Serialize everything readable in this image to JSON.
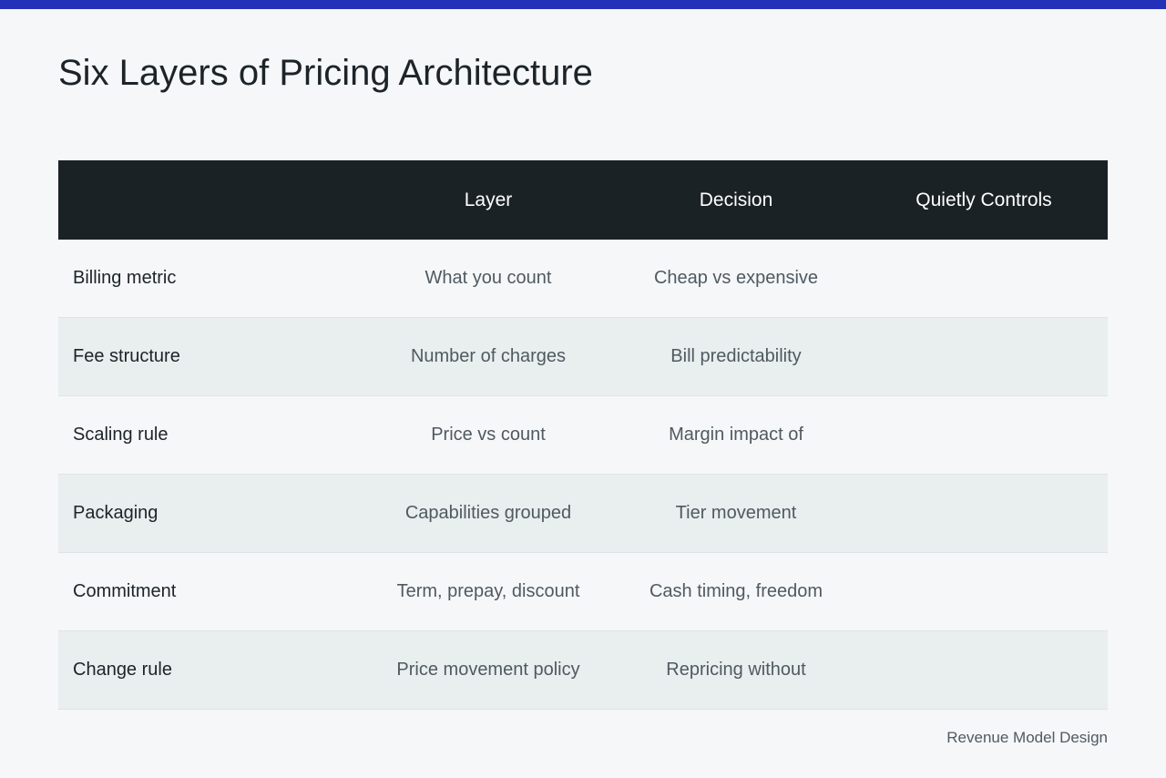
{
  "title": "Six Layers of Pricing Architecture",
  "table": {
    "headers": [
      "",
      "Layer",
      "Decision",
      "Quietly Controls"
    ],
    "rows": [
      {
        "label": "Billing metric",
        "layer": "What you count",
        "decision": "Cheap vs expensive",
        "controls": ""
      },
      {
        "label": "Fee structure",
        "layer": "Number of charges",
        "decision": "Bill predictability",
        "controls": ""
      },
      {
        "label": "Scaling rule",
        "layer": "Price vs count",
        "decision": "Margin impact of",
        "controls": ""
      },
      {
        "label": "Packaging",
        "layer": "Capabilities grouped",
        "decision": "Tier movement",
        "controls": ""
      },
      {
        "label": "Commitment",
        "layer": "Term, prepay, discount",
        "decision": "Cash timing, freedom",
        "controls": ""
      },
      {
        "label": "Change rule",
        "layer": "Price movement policy",
        "decision": "Repricing without",
        "controls": ""
      }
    ]
  },
  "footer": "Revenue Model Design",
  "colors": {
    "accent_bar": "#2430b8",
    "header_bg": "#1b2226",
    "row_alt_bg": "#e9eeef"
  }
}
